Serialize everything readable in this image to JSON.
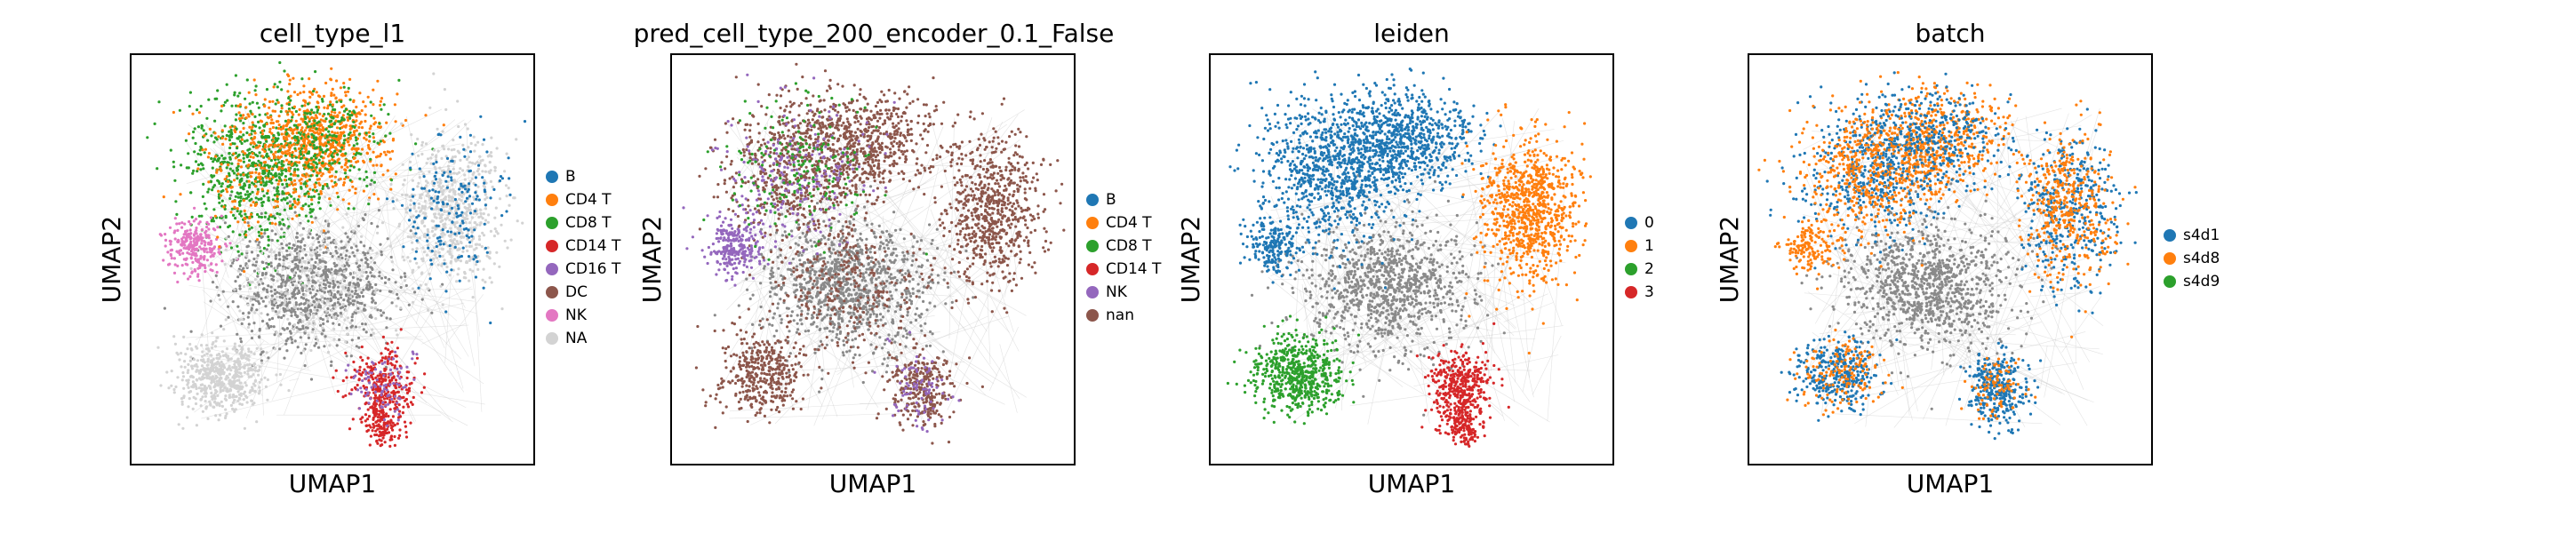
{
  "chart_data": [
    {
      "type": "scatter",
      "title": "cell_type_l1",
      "xlabel": "UMAP1",
      "ylabel": "UMAP2",
      "grid": false,
      "legend_placement": "right",
      "legend": [
        {
          "label": "B",
          "color": "#1f77b4"
        },
        {
          "label": "CD4 T",
          "color": "#ff7f0e"
        },
        {
          "label": "CD8 T",
          "color": "#2ca02c"
        },
        {
          "label": "CD14 T",
          "color": "#d62728"
        },
        {
          "label": "CD16 T",
          "color": "#9467bd"
        },
        {
          "label": "DC",
          "color": "#8c564b"
        },
        {
          "label": "NK",
          "color": "#e377c2"
        },
        {
          "label": "NA",
          "color": "#d3d3d3"
        }
      ]
    },
    {
      "type": "scatter",
      "title": "pred_cell_type_200_encoder_0.1_False",
      "xlabel": "UMAP1",
      "ylabel": "UMAP2",
      "grid": false,
      "legend_placement": "right",
      "legend": [
        {
          "label": "B",
          "color": "#1f77b4"
        },
        {
          "label": "CD4 T",
          "color": "#ff7f0e"
        },
        {
          "label": "CD8 T",
          "color": "#2ca02c"
        },
        {
          "label": "CD14 T",
          "color": "#d62728"
        },
        {
          "label": "NK",
          "color": "#9467bd"
        },
        {
          "label": "nan",
          "color": "#8c564b"
        }
      ]
    },
    {
      "type": "scatter",
      "title": "leiden",
      "xlabel": "UMAP1",
      "ylabel": "UMAP2",
      "grid": false,
      "legend_placement": "right",
      "legend": [
        {
          "label": "0",
          "color": "#1f77b4"
        },
        {
          "label": "1",
          "color": "#ff7f0e"
        },
        {
          "label": "2",
          "color": "#2ca02c"
        },
        {
          "label": "3",
          "color": "#d62728"
        }
      ]
    },
    {
      "type": "scatter",
      "title": "batch",
      "xlabel": "UMAP1",
      "ylabel": "UMAP2",
      "grid": false,
      "legend_placement": "right",
      "legend": [
        {
          "label": "s4d1",
          "color": "#1f77b4"
        },
        {
          "label": "s4d8",
          "color": "#ff7f0e"
        },
        {
          "label": "s4d9",
          "color": "#2ca02c"
        }
      ]
    }
  ]
}
